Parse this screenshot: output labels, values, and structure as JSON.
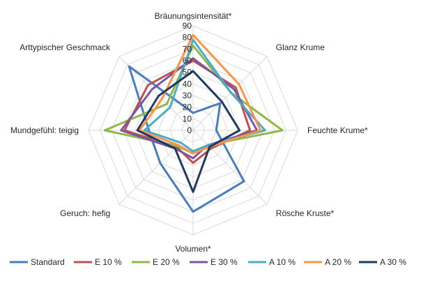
{
  "chart_data": {
    "type": "radar",
    "axes": [
      "Bräunungsintensität*",
      "Glanz Krume",
      "Feuchte Krume*",
      "Rösche Kruste*",
      "Volumen*",
      "Geruch: hefig",
      "Mundgefühl: teigig",
      "Arttypischer Geschmack"
    ],
    "ticks": [
      "0",
      "10",
      "20",
      "30",
      "40",
      "50",
      "60",
      "70",
      "80",
      "90"
    ],
    "range": [
      0,
      90
    ],
    "grid": true,
    "legend_position": "bottom",
    "series": [
      {
        "name": "Standard",
        "color": "#4a7dbf",
        "values": [
          15,
          33,
          20,
          62,
          70,
          40,
          38,
          78
        ]
      },
      {
        "name": "E 10 %",
        "color": "#c0504d",
        "values": [
          60,
          52,
          49,
          22,
          28,
          20,
          59,
          55
        ]
      },
      {
        "name": "E 20 %",
        "color": "#8fb944",
        "values": [
          73,
          46,
          77,
          18,
          20,
          19,
          76,
          32
        ]
      },
      {
        "name": "E 30 %",
        "color": "#7a56a4",
        "values": [
          62,
          50,
          55,
          18,
          24,
          22,
          62,
          50
        ]
      },
      {
        "name": "A 10 %",
        "color": "#4bacc6",
        "values": [
          78,
          46,
          62,
          18,
          18,
          15,
          42,
          28
        ]
      },
      {
        "name": "A 20 %",
        "color": "#f79646",
        "values": [
          82,
          56,
          58,
          20,
          20,
          18,
          46,
          38
        ]
      },
      {
        "name": "A 30 %",
        "color": "#1f3864",
        "values": [
          51,
          35,
          40,
          20,
          53,
          22,
          48,
          42
        ]
      }
    ]
  }
}
